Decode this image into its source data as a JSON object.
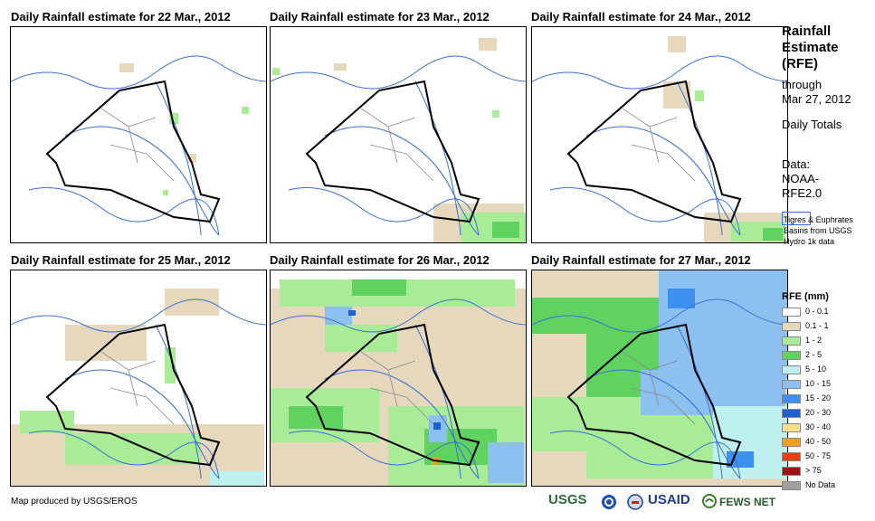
{
  "panels": [
    {
      "title": "Daily Rainfall estimate for 22 Mar., 2012"
    },
    {
      "title": "Daily Rainfall estimate for 23 Mar., 2012"
    },
    {
      "title": "Daily Rainfall estimate for 24 Mar., 2012"
    },
    {
      "title": "Daily Rainfall estimate for 25 Mar., 2012"
    },
    {
      "title": "Daily Rainfall estimate for 26 Mar., 2012"
    },
    {
      "title": "Daily Rainfall estimate for 27 Mar., 2012"
    }
  ],
  "side": {
    "title": "Rainfall Estimate (RFE)",
    "through": "through",
    "date": "Mar 27, 2012",
    "daily": "Daily Totals",
    "data": "Data: NOAA-RFE2.0"
  },
  "basin_note": "Tigres & Euphrates Basins from USGS Hydro 1k data",
  "legend": {
    "title": "RFE (mm)",
    "items": [
      {
        "label": "0 - 0.1",
        "color": "#ffffff"
      },
      {
        "label": "0.1 - 1",
        "color": "#e6d8bd"
      },
      {
        "label": "1 - 2",
        "color": "#a8ec98"
      },
      {
        "label": "2 - 5",
        "color": "#5fd25f"
      },
      {
        "label": "5 - 10",
        "color": "#bff0f0"
      },
      {
        "label": "10 - 15",
        "color": "#8cc0f0"
      },
      {
        "label": "15 - 20",
        "color": "#3d8ff0"
      },
      {
        "label": "20 - 30",
        "color": "#1f5fd6"
      },
      {
        "label": "30 - 40",
        "color": "#f8e08a"
      },
      {
        "label": "40 - 50",
        "color": "#f0a020"
      },
      {
        "label": "50 - 75",
        "color": "#f03c0a"
      },
      {
        "label": "> 75",
        "color": "#a01010"
      },
      {
        "label": "No Data",
        "color": "#a0a0a0"
      }
    ]
  },
  "credit": "Map produced by USGS/EROS",
  "logos": {
    "usgs": "USGS",
    "usaid": "USAID",
    "fewsnet": "FEWS NET"
  },
  "colors": {
    "river": "#3a6fd8",
    "border": "#000000",
    "provinces": "#8a8a8a"
  }
}
